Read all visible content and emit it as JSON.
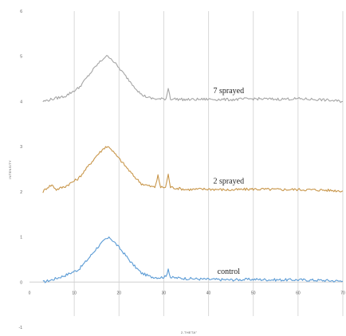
{
  "chart_data": {
    "type": "line",
    "title": "",
    "xlabel": "2-THETA°",
    "ylabel": "INTENSITY",
    "xlim": [
      0,
      70
    ],
    "ylim": [
      -1,
      6
    ],
    "x_ticks": [
      "0",
      "10",
      "20",
      "30",
      "40",
      "50",
      "60",
      "70"
    ],
    "y_ticks": [
      "-1",
      "0",
      "1",
      "2",
      "3",
      "4",
      "5",
      "6"
    ],
    "grid": "vertical",
    "series": [
      {
        "name": "control",
        "color": "#5b9bd5",
        "points": [
          [
            3,
            0.0
          ],
          [
            5,
            0.05
          ],
          [
            8,
            0.15
          ],
          [
            11,
            0.28
          ],
          [
            13,
            0.5
          ],
          [
            15,
            0.75
          ],
          [
            17,
            0.95
          ],
          [
            18,
            0.98
          ],
          [
            19,
            0.88
          ],
          [
            21,
            0.65
          ],
          [
            23,
            0.4
          ],
          [
            25,
            0.2
          ],
          [
            27,
            0.12
          ],
          [
            29,
            0.1
          ],
          [
            30.5,
            0.12
          ],
          [
            31,
            0.3
          ],
          [
            31.5,
            0.1
          ],
          [
            35,
            0.08
          ],
          [
            40,
            0.06
          ],
          [
            45,
            0.05
          ],
          [
            50,
            0.06
          ],
          [
            55,
            0.05
          ],
          [
            60,
            0.05
          ],
          [
            65,
            0.04
          ],
          [
            70,
            0.02
          ]
        ]
      },
      {
        "name": "2 sprayed",
        "color": "#c8964a",
        "points": [
          [
            3,
            2.0
          ],
          [
            4,
            2.1
          ],
          [
            5,
            2.15
          ],
          [
            6,
            2.05
          ],
          [
            8,
            2.12
          ],
          [
            11,
            2.3
          ],
          [
            13,
            2.55
          ],
          [
            15,
            2.8
          ],
          [
            17,
            3.0
          ],
          [
            18,
            2.98
          ],
          [
            19,
            2.85
          ],
          [
            21,
            2.62
          ],
          [
            23,
            2.38
          ],
          [
            25,
            2.18
          ],
          [
            27,
            2.12
          ],
          [
            28,
            2.1
          ],
          [
            28.7,
            2.35
          ],
          [
            29.3,
            2.1
          ],
          [
            30.4,
            2.1
          ],
          [
            31,
            2.38
          ],
          [
            31.5,
            2.1
          ],
          [
            35,
            2.05
          ],
          [
            40,
            2.06
          ],
          [
            45,
            2.04
          ],
          [
            50,
            2.06
          ],
          [
            55,
            2.05
          ],
          [
            60,
            2.05
          ],
          [
            65,
            2.04
          ],
          [
            70,
            2.02
          ]
        ]
      },
      {
        "name": "7 sprayed",
        "color": "#a5a5a5",
        "points": [
          [
            3,
            4.0
          ],
          [
            5,
            4.05
          ],
          [
            8,
            4.12
          ],
          [
            11,
            4.3
          ],
          [
            13,
            4.55
          ],
          [
            15,
            4.8
          ],
          [
            17,
            5.0
          ],
          [
            18,
            4.98
          ],
          [
            19,
            4.86
          ],
          [
            21,
            4.62
          ],
          [
            23,
            4.38
          ],
          [
            25,
            4.15
          ],
          [
            27,
            4.07
          ],
          [
            29,
            4.05
          ],
          [
            30.5,
            4.06
          ],
          [
            31,
            4.3
          ],
          [
            31.5,
            4.06
          ],
          [
            35,
            4.04
          ],
          [
            40,
            4.05
          ],
          [
            45,
            4.04
          ],
          [
            50,
            4.06
          ],
          [
            55,
            4.05
          ],
          [
            60,
            4.06
          ],
          [
            65,
            4.04
          ],
          [
            70,
            4.0
          ]
        ]
      }
    ]
  }
}
